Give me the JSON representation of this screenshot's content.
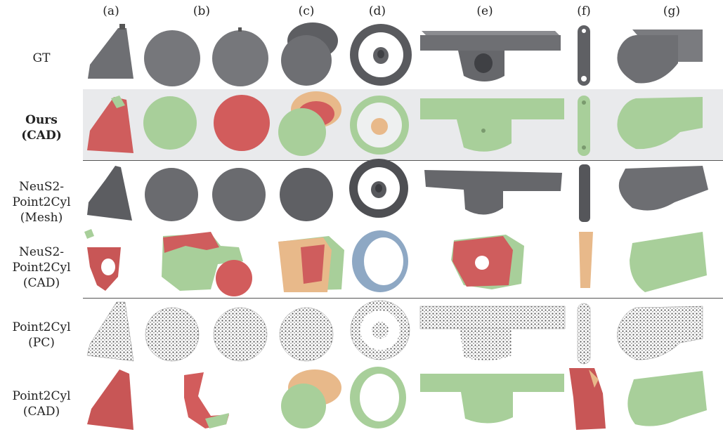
{
  "columns": [
    "(a)",
    "(b)",
    "(c)",
    "(d)",
    "(e)",
    "(f)",
    "(g)"
  ],
  "rows": [
    {
      "lines": [
        "GT"
      ],
      "bold": false
    },
    {
      "lines": [
        "Ours",
        "(CAD)"
      ],
      "bold": true
    },
    {
      "lines": [
        "NeuS2-",
        "Point2Cyl",
        "(Mesh)"
      ],
      "bold": false
    },
    {
      "lines": [
        "NeuS2-",
        "Point2Cyl",
        "(CAD)"
      ],
      "bold": false
    },
    {
      "lines": [
        "Point2Cyl",
        "(PC)"
      ],
      "bold": false
    },
    {
      "lines": [
        "Point2Cyl",
        "(CAD)"
      ],
      "bold": false
    }
  ],
  "colors": {
    "gt_gray": "#6e6f73",
    "green": "#a8cf9a",
    "red": "#d25c5c",
    "orange": "#e8b98a",
    "blue": "#8ea8c4",
    "highlight_band": "#e9eaec"
  }
}
